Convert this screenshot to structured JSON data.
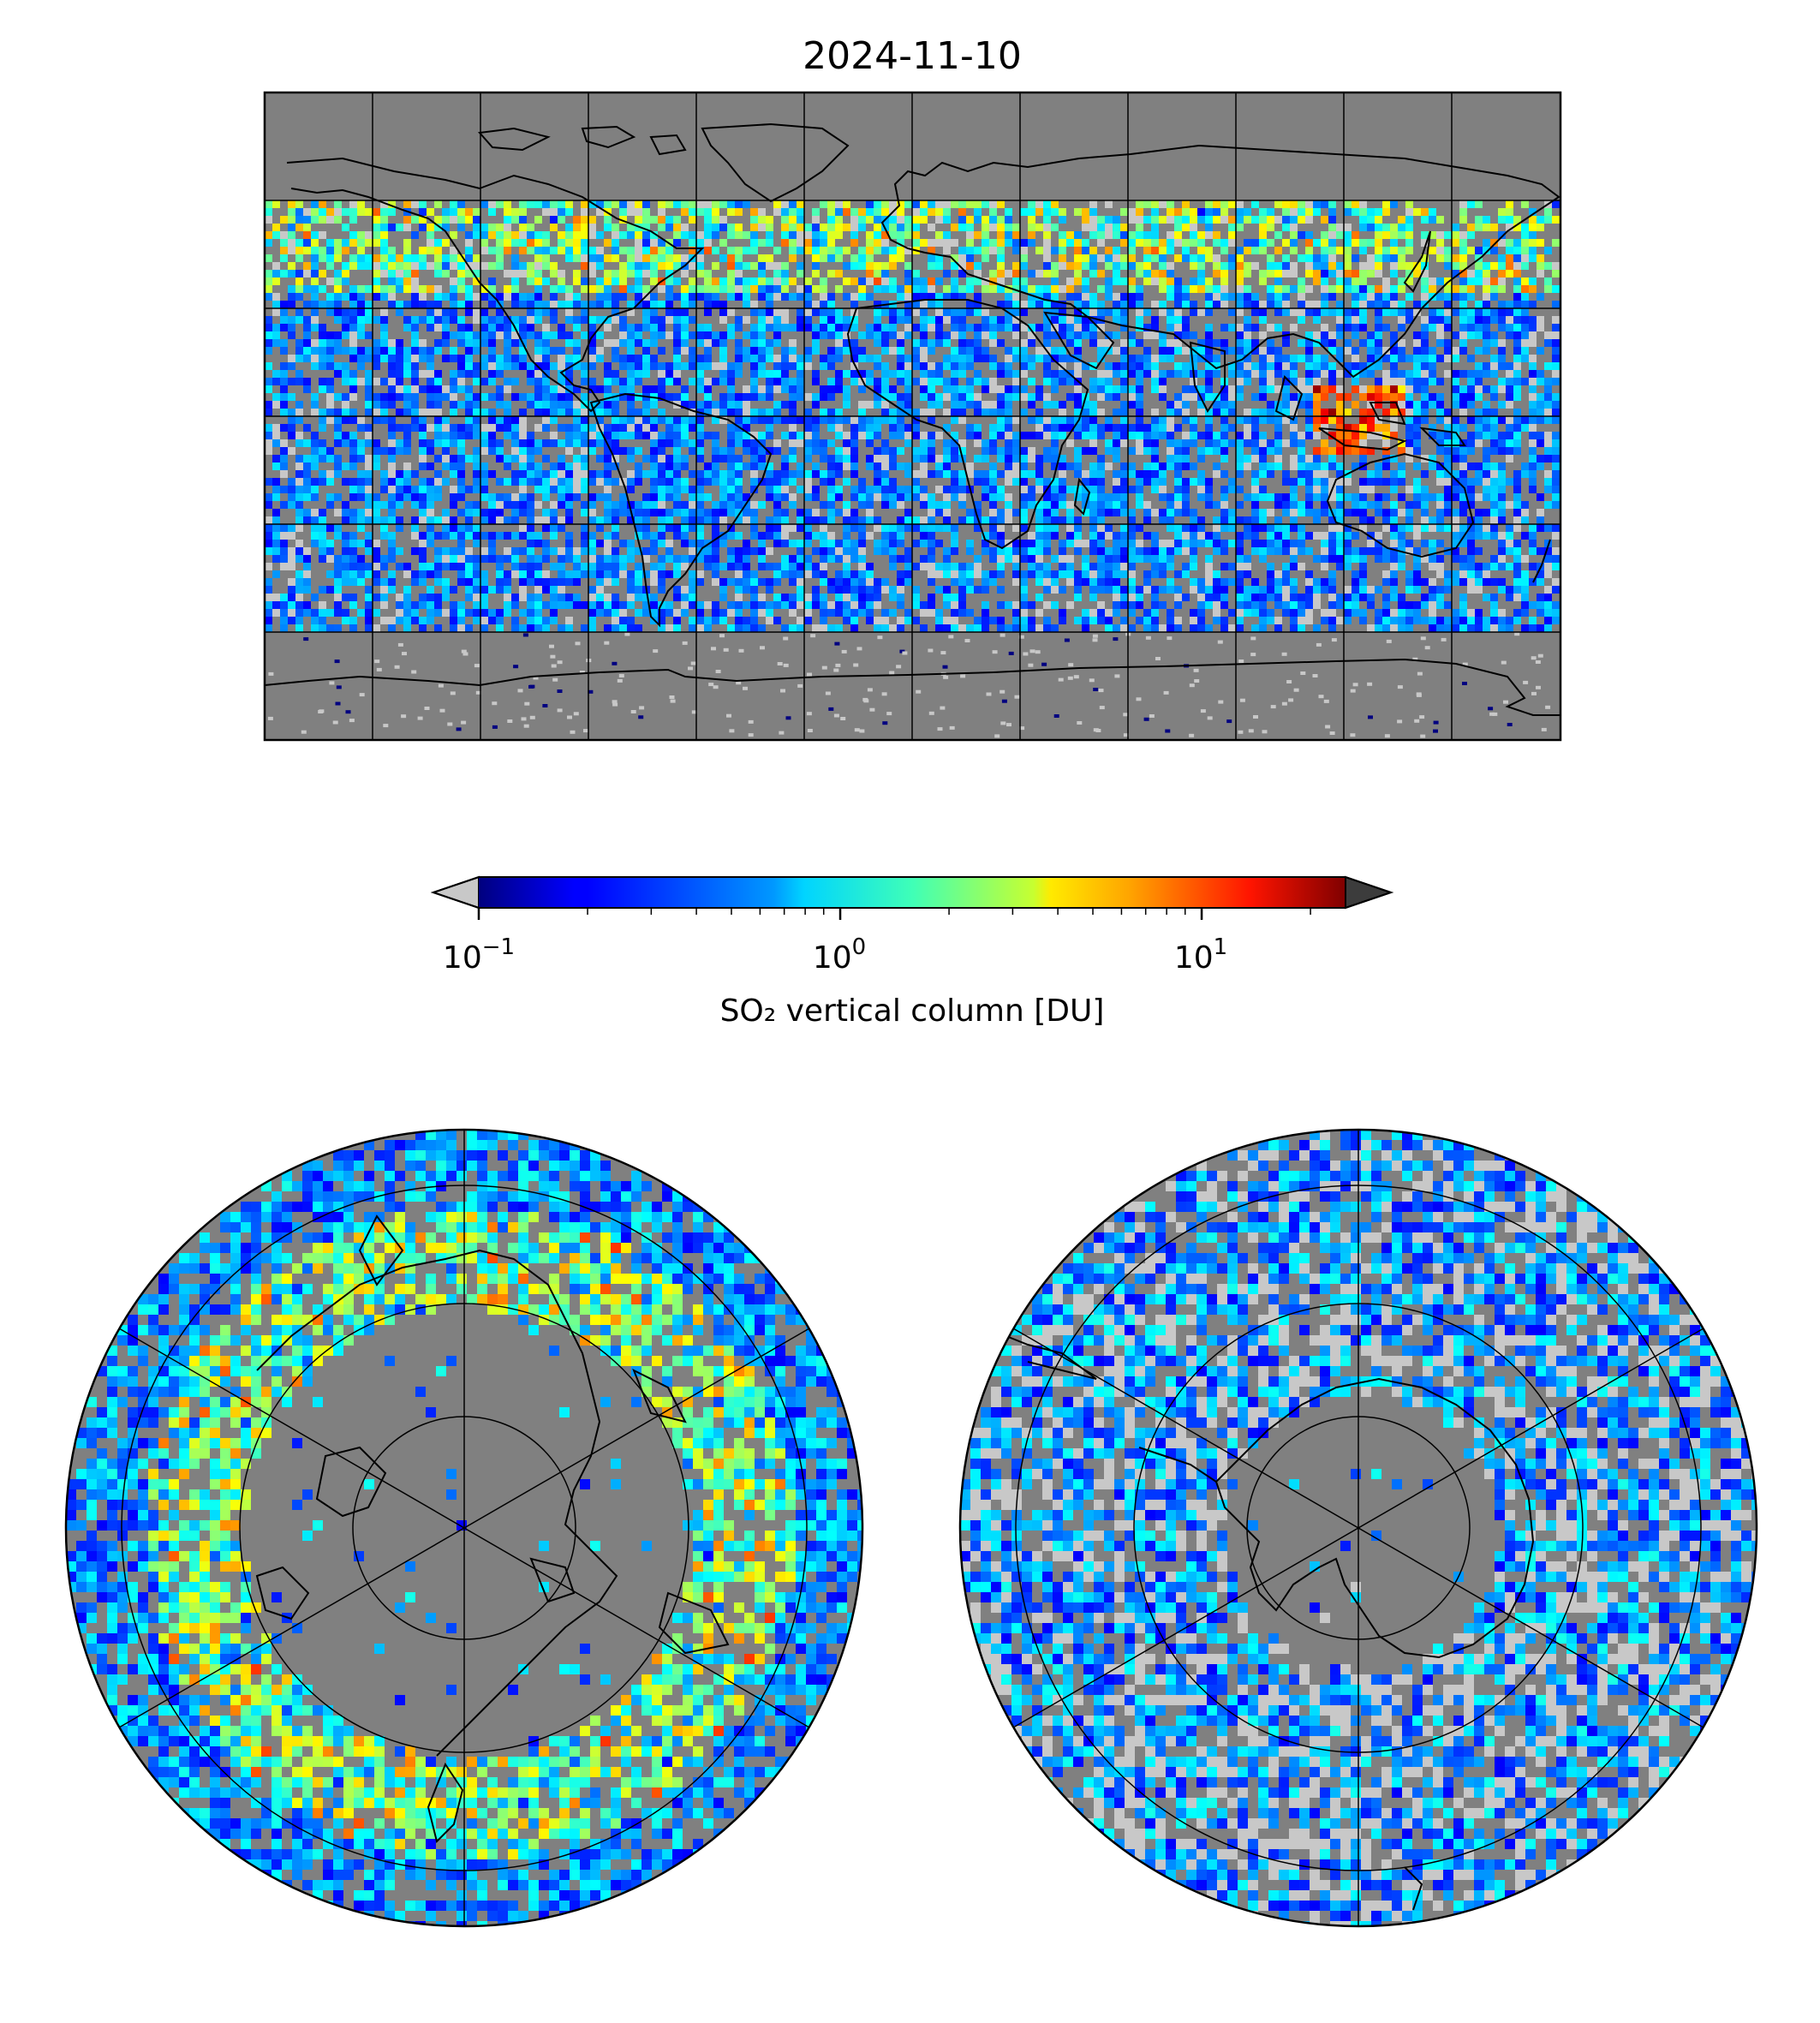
{
  "figure": {
    "title": "2024-11-10",
    "colorbar": {
      "label": "SO₂ vertical column [DU]",
      "scale": "log",
      "range": [
        0.1,
        25
      ],
      "ticks": [
        {
          "value": 0.1,
          "base": "10",
          "exp": "−1"
        },
        {
          "value": 1,
          "base": "10",
          "exp": "0"
        },
        {
          "value": 10,
          "base": "10",
          "exp": "1"
        }
      ],
      "colormap": "jet",
      "under_color": "#c8c8c8",
      "over_color": "#3c3c3c",
      "extend": "both"
    },
    "panels": [
      {
        "name": "global",
        "projection": "equirectangular",
        "no_data_color": "#808080"
      },
      {
        "name": "north-polar",
        "projection": "north-polar-stereographic",
        "no_data_color": "#808080"
      },
      {
        "name": "south-polar",
        "projection": "south-polar-stereographic",
        "no_data_color": "#808080"
      }
    ]
  }
}
